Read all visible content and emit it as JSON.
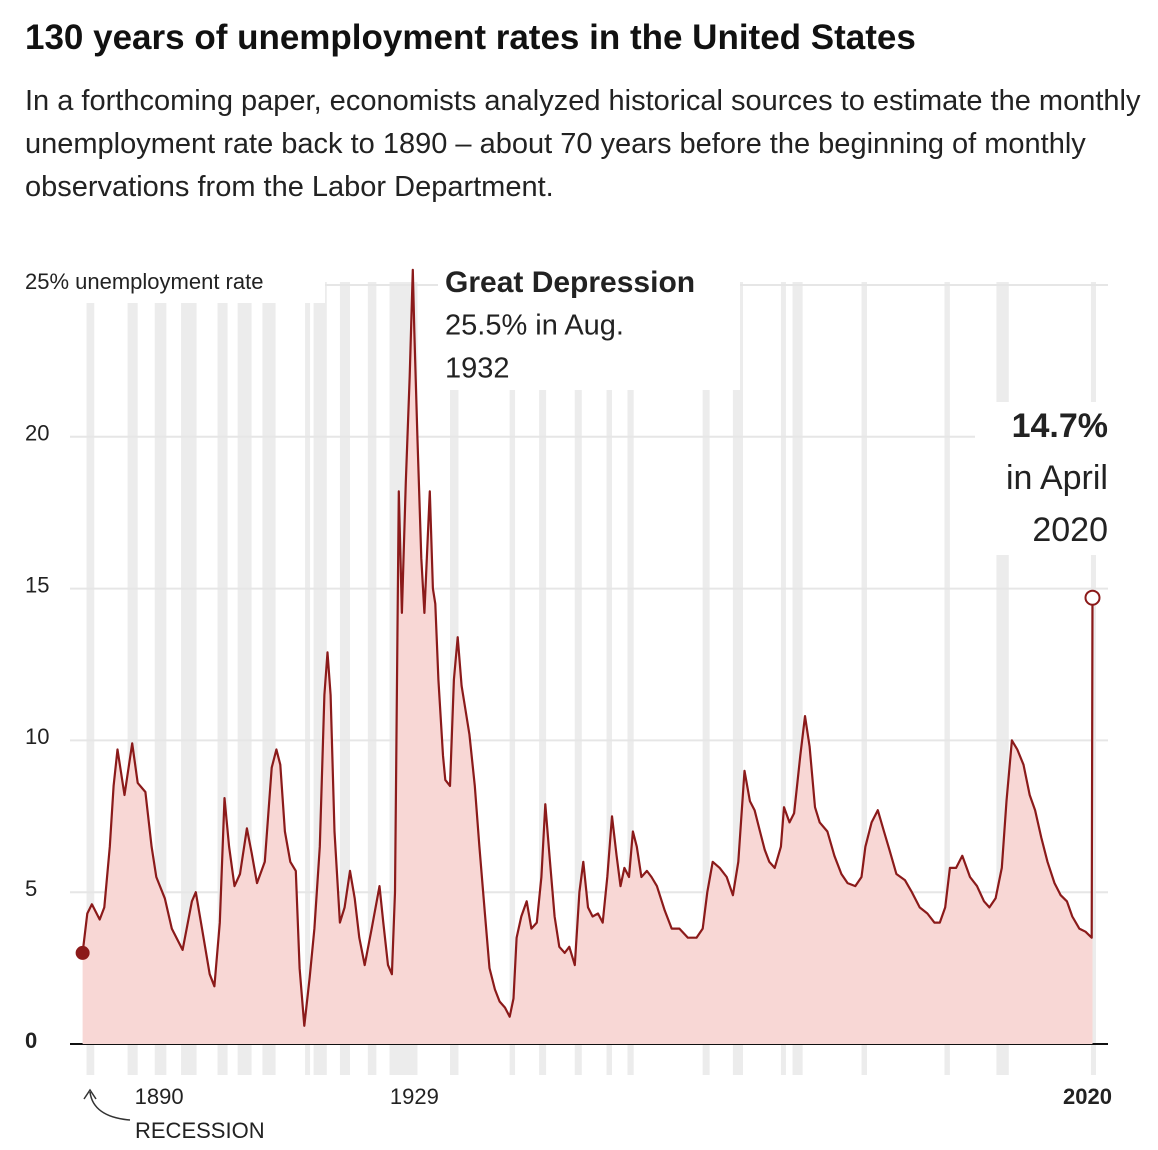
{
  "chart_data": {
    "type": "area",
    "title": "130 years of unemployment rates in the United States",
    "subtitle": "In a forthcoming paper, economists analyzed historical sources to estimate the monthly unemployment rate back to 1890 – about 70 years before the beginning of monthly observations from the Labor Department.",
    "recession_label": "RECESSION",
    "annotations": [
      {
        "lines": [
          "Great Depression",
          "25.5% in Aug.",
          "1932"
        ]
      },
      {
        "lines": [
          "14.7%",
          "in April",
          "2020"
        ]
      }
    ],
    "color": "#8b1a1a",
    "fill": "#f8d7d5",
    "band_color": "#ececec",
    "xlim": [
      1884.5,
      2022.3
    ],
    "ylim": [
      0,
      25
    ],
    "xticks": [
      1890,
      1929,
      2020
    ],
    "yticks": [
      0,
      5,
      10,
      15,
      20,
      {
        "value": 25,
        "label": "25% unemployment rate"
      }
    ],
    "grid": true,
    "recessions": [
      [
        1890.5,
        1891.5
      ],
      [
        1895.8,
        1897.1
      ],
      [
        1899.3,
        1900.8
      ],
      [
        1902.7,
        1904.7
      ],
      [
        1907.4,
        1908.7
      ],
      [
        1910,
        1911.8
      ],
      [
        1913.2,
        1914.9
      ],
      [
        1918.7,
        1919.3
      ],
      [
        1919.8,
        1921.5
      ],
      [
        1923.2,
        1924.5
      ],
      [
        1926.8,
        1927.9
      ],
      [
        1929.6,
        1933.2
      ],
      [
        1937.4,
        1938.5
      ],
      [
        1945.1,
        1945.8
      ],
      [
        1948.9,
        1949.8
      ],
      [
        1953.5,
        1954.4
      ],
      [
        1957.6,
        1958.3
      ],
      [
        1960.3,
        1961.1
      ],
      [
        1970,
        1970.9
      ],
      [
        1973.9,
        1975.2
      ],
      [
        1980.1,
        1980.5
      ],
      [
        1981.6,
        1982.9
      ],
      [
        1990.5,
        1991.2
      ],
      [
        2001.2,
        2001.9
      ],
      [
        2007.9,
        2009.5
      ],
      [
        2020.1,
        2020.3
      ]
    ],
    "x": [
      1890.0,
      1890.6,
      1891.2,
      1892.2,
      1892.8,
      1893.5,
      1894.0,
      1894.5,
      1895.4,
      1896.4,
      1897.1,
      1898.1,
      1898.9,
      1899.5,
      1900.6,
      1901.5,
      1902.9,
      1904.1,
      1904.6,
      1905.4,
      1906.4,
      1907.0,
      1907.7,
      1908.3,
      1908.9,
      1909.6,
      1910.3,
      1911.2,
      1911.8,
      1912.5,
      1913.5,
      1914.4,
      1915.0,
      1915.5,
      1916.1,
      1916.8,
      1917.5,
      1918.0,
      1918.6,
      1919.3,
      1919.9,
      1920.6,
      1921.2,
      1921.6,
      1922.0,
      1922.5,
      1923.2,
      1923.8,
      1924.5,
      1925.1,
      1925.7,
      1926.4,
      1927.3,
      1928.3,
      1928.8,
      1929.4,
      1929.9,
      1930.3,
      1930.8,
      1931.2,
      1931.7,
      1932.2,
      1932.6,
      1932.8,
      1933.2,
      1933.7,
      1934.1,
      1934.8,
      1935.2,
      1935.5,
      1935.9,
      1936.5,
      1936.8,
      1937.4,
      1937.9,
      1938.4,
      1938.9,
      1939.4,
      1939.9,
      1940.6,
      1941.2,
      1941.9,
      1942.5,
      1943.2,
      1943.8,
      1944.5,
      1945.1,
      1945.6,
      1946.0,
      1946.6,
      1947.3,
      1947.9,
      1948.6,
      1949.2,
      1949.7,
      1950.3,
      1950.9,
      1951.5,
      1952.2,
      1952.8,
      1953.5,
      1954.1,
      1954.6,
      1955.2,
      1955.8,
      1956.5,
      1957.1,
      1957.7,
      1958.3,
      1958.9,
      1959.4,
      1959.9,
      1960.5,
      1961.0,
      1961.5,
      1962.1,
      1962.8,
      1963.4,
      1964.1,
      1965.1,
      1966.0,
      1967.0,
      1968.1,
      1969.2,
      1970.0,
      1970.6,
      1971.3,
      1972.2,
      1973.1,
      1973.9,
      1974.6,
      1975.4,
      1976.1,
      1976.7,
      1977.4,
      1978.0,
      1978.6,
      1979.3,
      1980.1,
      1980.5,
      1981.2,
      1981.8,
      1982.6,
      1983.2,
      1983.8,
      1984.5,
      1985.1,
      1986.1,
      1987.0,
      1987.9,
      1988.7,
      1989.7,
      1990.5,
      1991.0,
      1991.8,
      1992.6,
      1993.4,
      1994.1,
      1995.0,
      1996.1,
      1997.0,
      1998.0,
      1999.0,
      1999.9,
      2000.6,
      2001.3,
      2001.9,
      2002.7,
      2003.5,
      2004.5,
      2005.4,
      2006.3,
      2007.0,
      2007.8,
      2008.6,
      2009.2,
      2009.9,
      2010.6,
      2011.4,
      2012.2,
      2012.9,
      2013.7,
      2014.5,
      2015.4,
      2016.2,
      2017.0,
      2017.7,
      2018.6,
      2019.4,
      2020.2,
      2020.3
    ],
    "values": [
      3.0,
      4.3,
      4.6,
      4.1,
      4.5,
      6.5,
      8.5,
      9.7,
      8.2,
      9.9,
      8.6,
      8.3,
      6.5,
      5.5,
      4.8,
      3.8,
      3.1,
      4.7,
      5.0,
      3.8,
      2.3,
      1.9,
      4.0,
      8.1,
      6.5,
      5.2,
      5.6,
      7.1,
      6.3,
      5.3,
      6.0,
      9.1,
      9.7,
      9.2,
      7.0,
      6.0,
      5.7,
      2.5,
      0.6,
      2.2,
      3.8,
      6.5,
      11.5,
      12.9,
      11.5,
      7.0,
      4.0,
      4.5,
      5.7,
      4.8,
      3.5,
      2.6,
      3.8,
      5.2,
      4.0,
      2.6,
      2.3,
      5.0,
      18.2,
      14.2,
      18.5,
      22.0,
      25.5,
      23.5,
      20.0,
      16.0,
      14.2,
      18.2,
      15.0,
      14.5,
      12.0,
      9.5,
      8.7,
      8.5,
      12.0,
      13.4,
      11.8,
      11.0,
      10.2,
      8.5,
      6.5,
      4.3,
      2.5,
      1.8,
      1.4,
      1.2,
      0.9,
      1.5,
      3.5,
      4.2,
      4.7,
      3.8,
      4.0,
      5.5,
      7.9,
      6.0,
      4.2,
      3.2,
      3.0,
      3.2,
      2.6,
      5.0,
      6.0,
      4.5,
      4.2,
      4.3,
      4.0,
      5.5,
      7.5,
      6.2,
      5.2,
      5.8,
      5.5,
      7.0,
      6.5,
      5.5,
      5.7,
      5.5,
      5.2,
      4.4,
      3.8,
      3.8,
      3.5,
      3.5,
      3.8,
      5.0,
      6.0,
      5.8,
      5.5,
      4.9,
      6.0,
      9.0,
      8.0,
      7.7,
      7.0,
      6.4,
      6.0,
      5.8,
      6.5,
      7.8,
      7.3,
      7.6,
      9.5,
      10.8,
      9.8,
      7.8,
      7.3,
      7.0,
      6.2,
      5.6,
      5.3,
      5.2,
      5.5,
      6.5,
      7.3,
      7.7,
      7.0,
      6.4,
      5.6,
      5.4,
      5.0,
      4.5,
      4.3,
      4.0,
      4.0,
      4.5,
      5.8,
      5.8,
      6.2,
      5.5,
      5.2,
      4.7,
      4.5,
      4.8,
      5.8,
      8.0,
      10.0,
      9.7,
      9.2,
      8.2,
      7.7,
      6.8,
      6.0,
      5.3,
      4.9,
      4.7,
      4.2,
      3.8,
      3.7,
      3.5,
      14.7
    ]
  }
}
